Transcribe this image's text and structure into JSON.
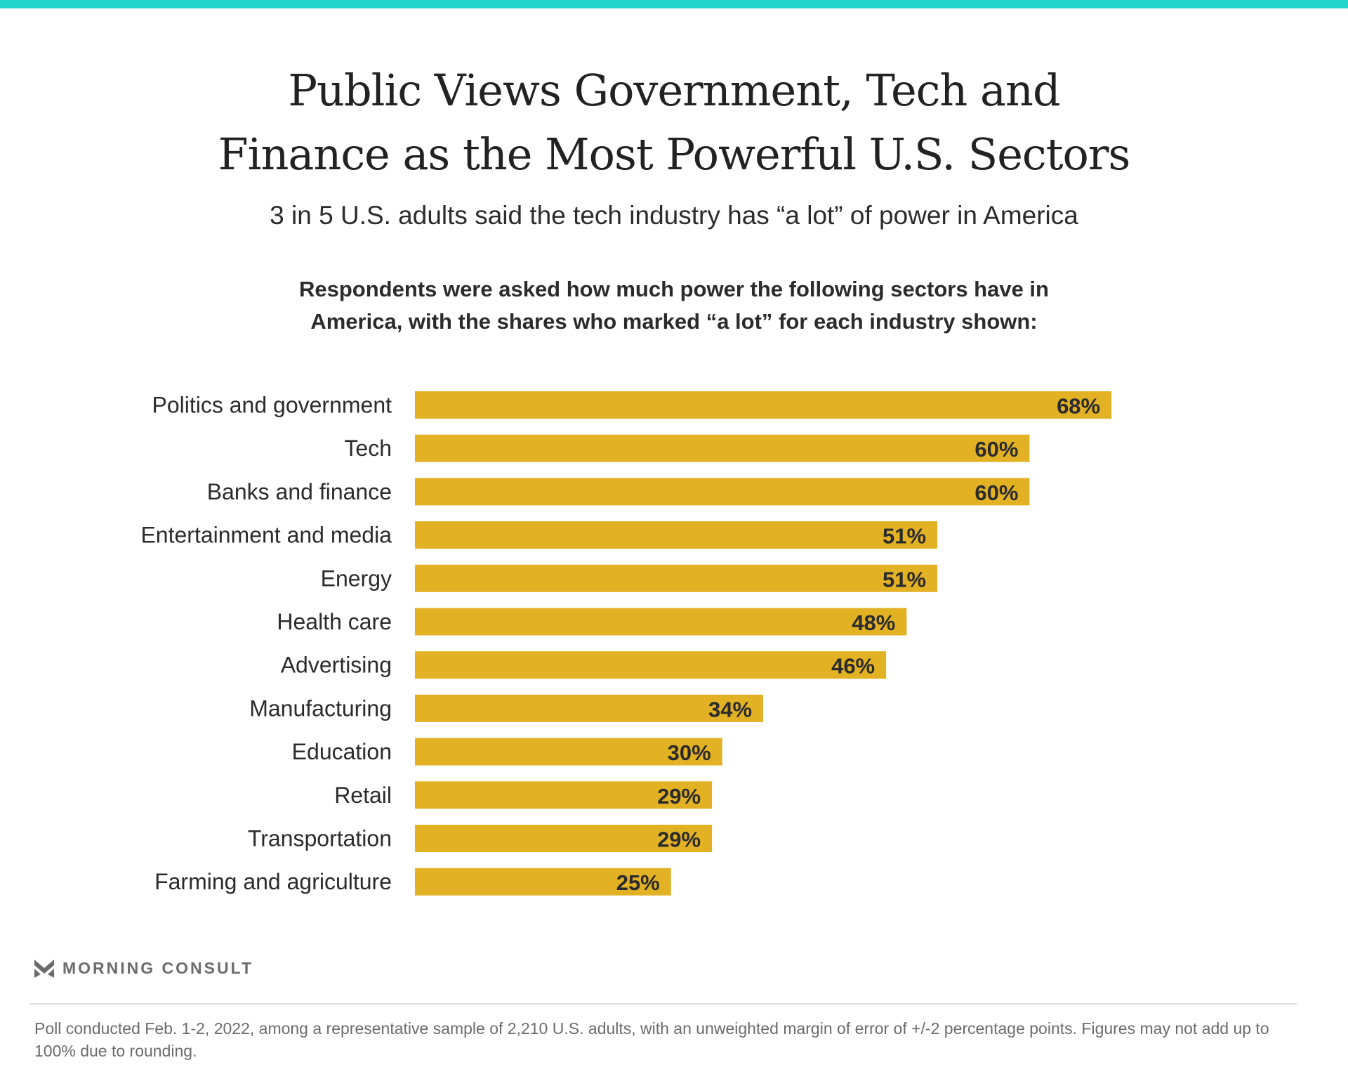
{
  "header": {
    "title_line1": "Public Views Government, Tech and",
    "title_line2": "Finance as the Most Powerful U.S. Sectors",
    "subtitle": "3 in 5 U.S. adults said the tech industry has “a lot” of power in America",
    "question_line1": "Respondents were asked how much power the following sectors have in",
    "question_line2": "America, with the shares who marked “a lot” for each industry shown:"
  },
  "colors": {
    "accent_bar": "#1fd4cb",
    "bar": "#e2b124"
  },
  "chart_data": {
    "type": "bar",
    "orientation": "horizontal",
    "categories": [
      "Politics and government",
      "Tech",
      "Banks and finance",
      "Entertainment and media",
      "Energy",
      "Health care",
      "Advertising",
      "Manufacturing",
      "Education",
      "Retail",
      "Transportation",
      "Farming and agriculture"
    ],
    "values": [
      68,
      60,
      60,
      51,
      51,
      48,
      46,
      34,
      30,
      29,
      29,
      25
    ],
    "labels": [
      "68%",
      "60%",
      "60%",
      "51%",
      "51%",
      "48%",
      "46%",
      "34%",
      "30%",
      "29%",
      "29%",
      "25%"
    ],
    "unit": "%",
    "xlim": [
      0,
      100
    ],
    "grid": false
  },
  "footer": {
    "brand": "MORNING CONSULT",
    "note": "Poll conducted Feb. 1-2, 2022, among a representative sample of 2,210 U.S. adults, with an unweighted margin of error of +/-2 percentage points. Figures may not add up to 100% due to rounding."
  }
}
